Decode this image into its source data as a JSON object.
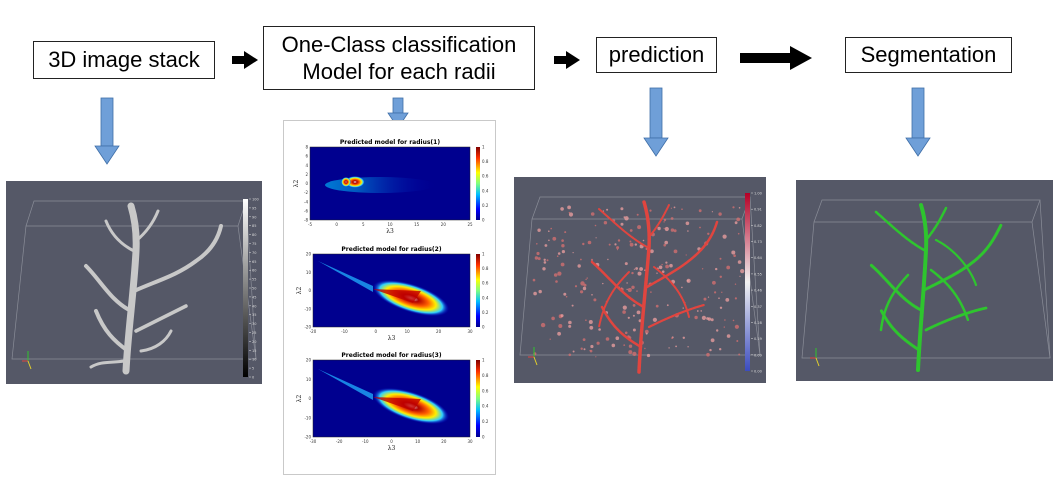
{
  "boxes": {
    "stack": "3D image stack",
    "model_line1": "One-Class classification",
    "model_line2": "Model for each radii",
    "prediction": "prediction",
    "segmentation": "Segmentation"
  },
  "plots": [
    {
      "title": "Predicted model for radius(1)",
      "xlabel": "λ3",
      "ylabel": "λ2",
      "xticks": [
        "-5",
        "0",
        "5",
        "10",
        "15",
        "20",
        "25"
      ],
      "yticks": [
        "8",
        "6",
        "4",
        "2",
        "0",
        "-2",
        "-4",
        "-6",
        "-8"
      ],
      "cticks": [
        "1",
        "0.8",
        "0.6",
        "0.4",
        "0.2",
        "0"
      ]
    },
    {
      "title": "Predicted model for radius(2)",
      "xlabel": "λ3",
      "ylabel": "λ2",
      "xticks": [
        "-20",
        "-10",
        "0",
        "10",
        "20",
        "30"
      ],
      "yticks": [
        "20",
        "10",
        "0",
        "-10",
        "-20"
      ],
      "cticks": [
        "1",
        "0.8",
        "0.6",
        "0.4",
        "0.2",
        "0"
      ]
    },
    {
      "title": "Predicted model for radius(3)",
      "xlabel": "λ3",
      "ylabel": "λ2",
      "xticks": [
        "-30",
        "-20",
        "-10",
        "0",
        "10",
        "20",
        "30"
      ],
      "yticks": [
        "20",
        "10",
        "0",
        "-10",
        "-20"
      ],
      "cticks": [
        "1",
        "0.8",
        "0.6",
        "0.4",
        "0.2",
        "0"
      ]
    }
  ],
  "stack_colorbar_ticks": [
    "100",
    "95",
    "90",
    "85",
    "80",
    "75",
    "70",
    "65",
    "60",
    "55",
    "50",
    "45",
    "40",
    "35",
    "30",
    "25",
    "20",
    "15",
    "10",
    "5",
    "0"
  ],
  "prediction_colorbar_ticks": [
    "1.00",
    "0.91",
    "0.82",
    "0.73",
    "0.64",
    "0.55",
    "0.46",
    "0.37",
    "0.28",
    "0.19",
    "0.09",
    "0.00"
  ],
  "colors": {
    "panel_bg": "#555867",
    "arrow_blue": "#6f9fd8",
    "neuron_gray": "#c8c8c8",
    "prediction_red": "#e0453f",
    "segmentation_green": "#2ec52e"
  }
}
